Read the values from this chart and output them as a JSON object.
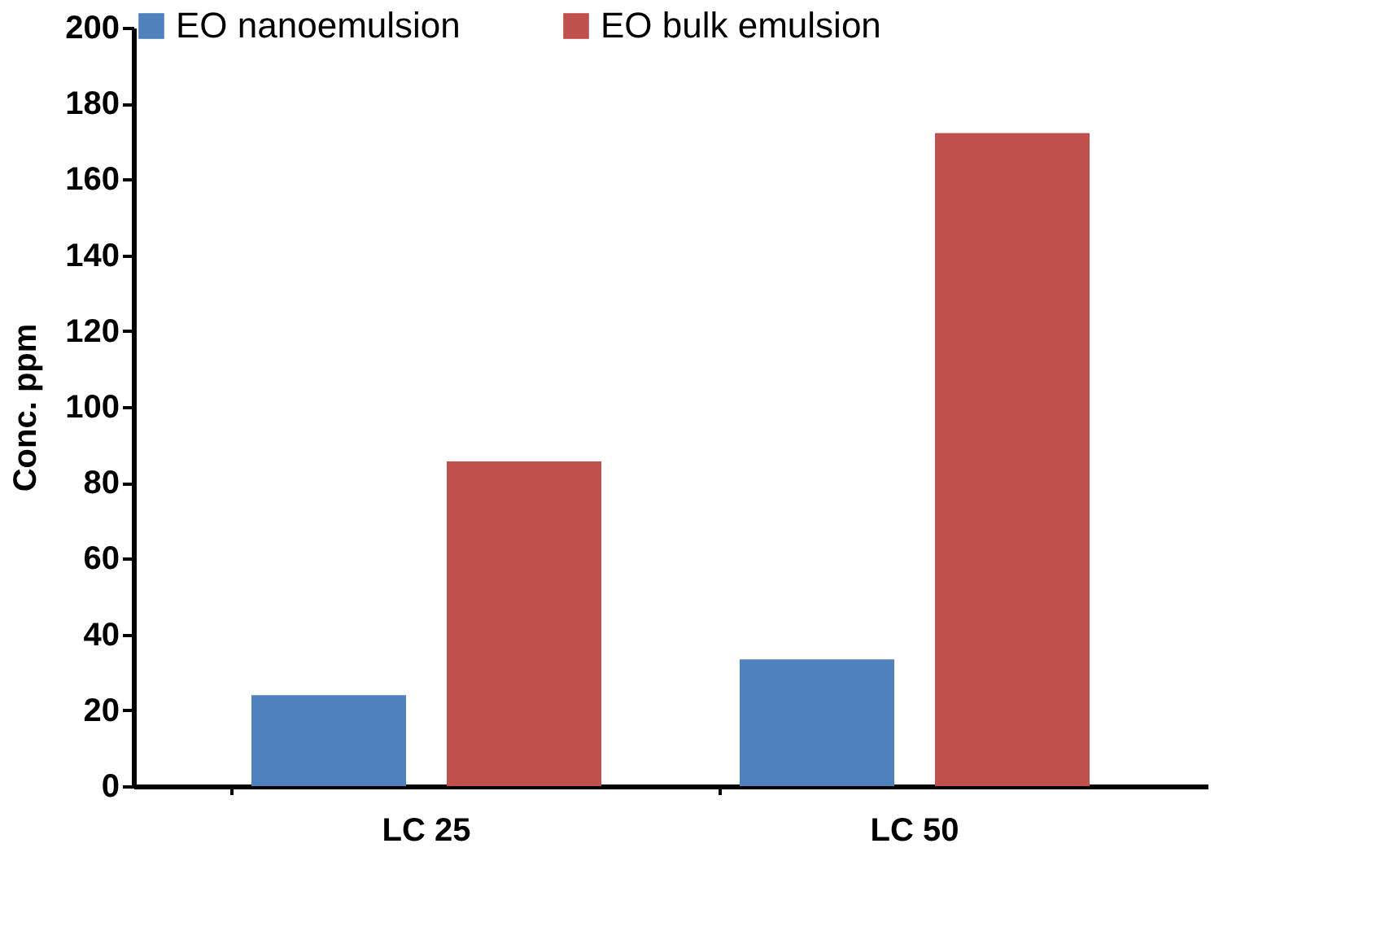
{
  "chart_data": {
    "type": "bar",
    "ylabel": "Conc. ppm",
    "categories": [
      "LC 25",
      "LC 50"
    ],
    "series": [
      {
        "name": "EO nanoemulsion",
        "color": "#4f81bd",
        "values": [
          24,
          33.4
        ]
      },
      {
        "name": "EO bulk emulsion",
        "color": "#c0504d",
        "values": [
          85.6,
          172.2
        ]
      }
    ],
    "ylim": [
      0,
      200
    ],
    "yticks": [
      0,
      20,
      40,
      60,
      80,
      100,
      120,
      140,
      160,
      180,
      200
    ],
    "grid": false,
    "legend": "top"
  }
}
